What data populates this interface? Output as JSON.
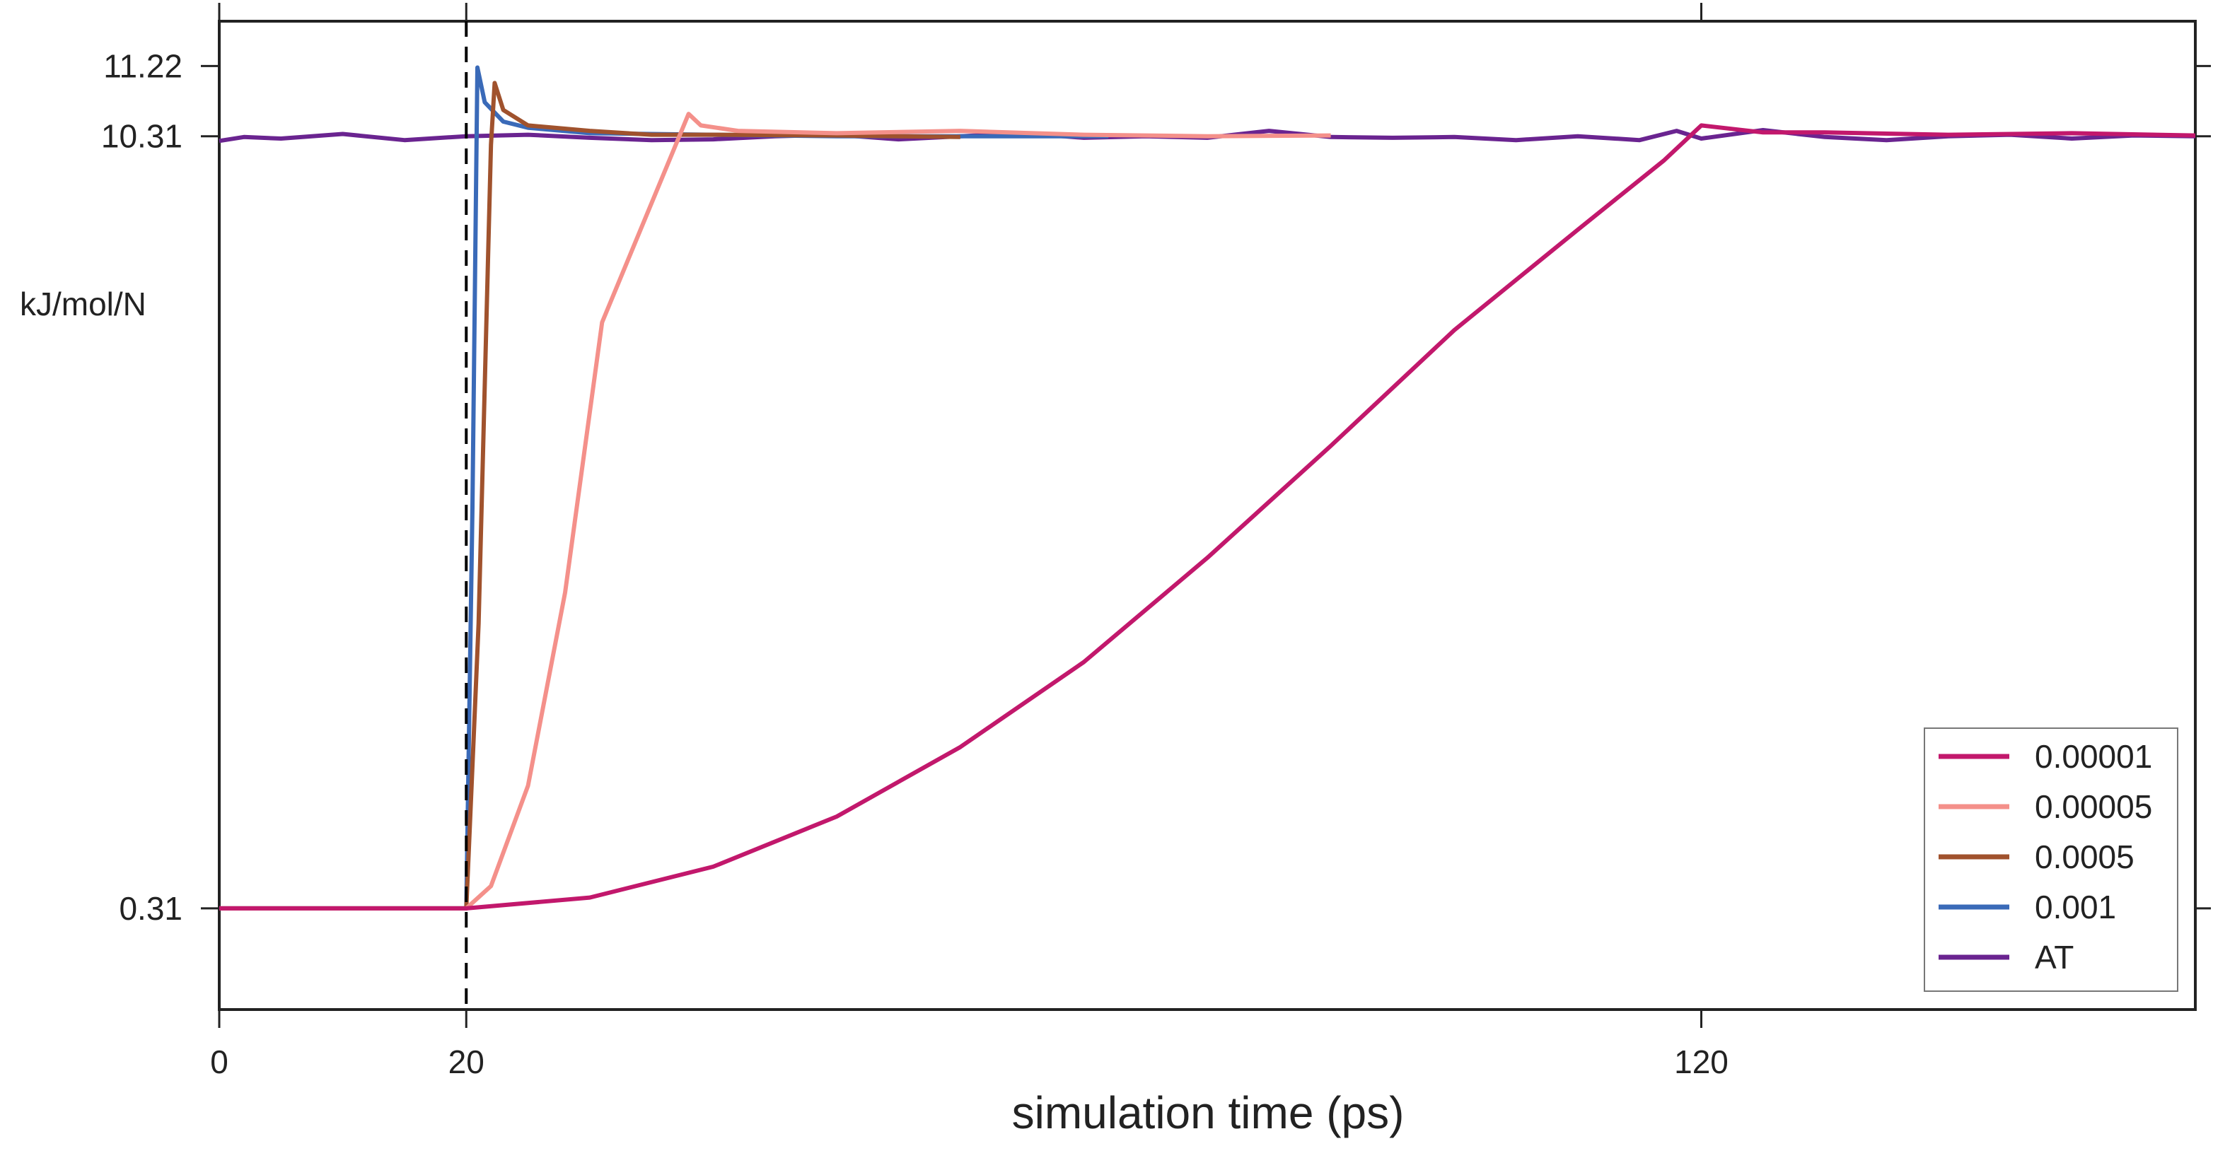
{
  "chart_data": {
    "type": "line",
    "title": "",
    "xlabel": "simulation time (ps)",
    "ylabel": "kJ/mol/N",
    "xlim": [
      0,
      160
    ],
    "ylim": [
      -1.0,
      11.8
    ],
    "x_ticks": [
      {
        "value": 0,
        "label": "0"
      },
      {
        "value": 20,
        "label": "20"
      },
      {
        "value": 120,
        "label": "120"
      }
    ],
    "y_ticks": [
      {
        "value": 0.31,
        "label": "0.31"
      },
      {
        "value": 10.31,
        "label": "10.31"
      },
      {
        "value": 11.22,
        "label": "11.22"
      }
    ],
    "vline": {
      "x": 20,
      "style": "dashed",
      "color": "#000000"
    },
    "grid": false,
    "legend_position": "bottom-right",
    "series": [
      {
        "name": "0.00001",
        "color": "#c2186c",
        "points": [
          [
            0,
            0.31
          ],
          [
            20,
            0.31
          ],
          [
            30,
            0.45
          ],
          [
            40,
            0.85
          ],
          [
            50,
            1.5
          ],
          [
            60,
            2.4
          ],
          [
            70,
            3.5
          ],
          [
            80,
            4.85
          ],
          [
            90,
            6.3
          ],
          [
            100,
            7.8
          ],
          [
            110,
            9.1
          ],
          [
            117,
            10.0
          ],
          [
            120,
            10.45
          ],
          [
            125,
            10.36
          ],
          [
            130,
            10.36
          ],
          [
            140,
            10.33
          ],
          [
            150,
            10.35
          ],
          [
            160,
            10.32
          ]
        ]
      },
      {
        "name": "0.00005",
        "color": "#f4908a",
        "points": [
          [
            0,
            0.31
          ],
          [
            20,
            0.31
          ],
          [
            22,
            0.6
          ],
          [
            25,
            1.9
          ],
          [
            28,
            4.4
          ],
          [
            31,
            7.9
          ],
          [
            38,
            10.6
          ],
          [
            39,
            10.45
          ],
          [
            42,
            10.38
          ],
          [
            50,
            10.35
          ],
          [
            60,
            10.38
          ],
          [
            70,
            10.33
          ],
          [
            80,
            10.31
          ],
          [
            90,
            10.32
          ]
        ]
      },
      {
        "name": "0.0005",
        "color": "#a0522d",
        "points": [
          [
            0,
            0.31
          ],
          [
            20,
            0.31
          ],
          [
            21,
            4.0
          ],
          [
            22,
            10.2
          ],
          [
            22.3,
            11.0
          ],
          [
            23,
            10.65
          ],
          [
            25,
            10.45
          ],
          [
            30,
            10.38
          ],
          [
            35,
            10.33
          ],
          [
            40,
            10.33
          ],
          [
            50,
            10.32
          ],
          [
            60,
            10.3
          ]
        ]
      },
      {
        "name": "0.001",
        "color": "#3a6ab8",
        "points": [
          [
            0,
            0.31
          ],
          [
            20,
            0.31
          ],
          [
            20.5,
            5.5
          ],
          [
            20.9,
            11.2
          ],
          [
            21.5,
            10.75
          ],
          [
            23,
            10.5
          ],
          [
            25,
            10.42
          ],
          [
            30,
            10.35
          ],
          [
            40,
            10.33
          ],
          [
            50,
            10.31
          ],
          [
            60,
            10.31
          ],
          [
            72,
            10.31
          ]
        ]
      },
      {
        "name": "AT",
        "color": "#6a2490",
        "points": [
          [
            0,
            10.25
          ],
          [
            2,
            10.3
          ],
          [
            5,
            10.28
          ],
          [
            10,
            10.34
          ],
          [
            15,
            10.26
          ],
          [
            20,
            10.31
          ],
          [
            25,
            10.33
          ],
          [
            30,
            10.29
          ],
          [
            35,
            10.26
          ],
          [
            40,
            10.27
          ],
          [
            45,
            10.31
          ],
          [
            50,
            10.33
          ],
          [
            55,
            10.27
          ],
          [
            60,
            10.31
          ],
          [
            65,
            10.35
          ],
          [
            70,
            10.29
          ],
          [
            75,
            10.31
          ],
          [
            80,
            10.29
          ],
          [
            85,
            10.38
          ],
          [
            90,
            10.3
          ],
          [
            95,
            10.29
          ],
          [
            100,
            10.3
          ],
          [
            105,
            10.26
          ],
          [
            110,
            10.31
          ],
          [
            115,
            10.26
          ],
          [
            118,
            10.38
          ],
          [
            120,
            10.28
          ],
          [
            125,
            10.39
          ],
          [
            130,
            10.3
          ],
          [
            135,
            10.26
          ],
          [
            140,
            10.31
          ],
          [
            145,
            10.33
          ],
          [
            150,
            10.28
          ],
          [
            155,
            10.32
          ],
          [
            160,
            10.31
          ]
        ]
      }
    ]
  },
  "colors": {
    "axis": "#222222",
    "background": "#ffffff"
  }
}
